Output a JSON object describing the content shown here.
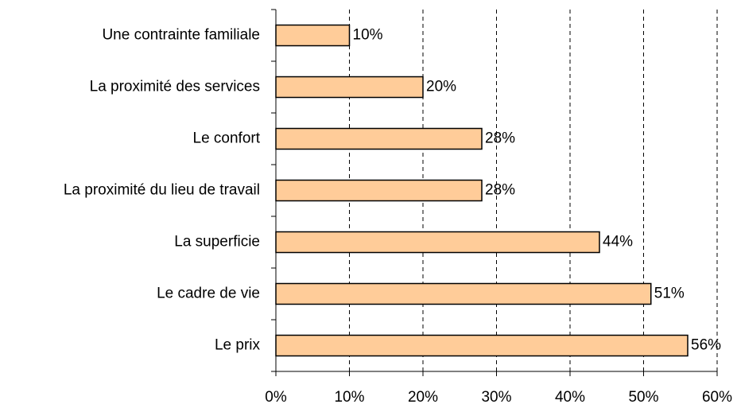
{
  "chart_data": {
    "type": "bar",
    "orientation": "horizontal",
    "categories": [
      "Une contrainte familiale",
      "La proximité des services",
      "Le confort",
      "La proximité du lieu de travail",
      "La superficie",
      "Le cadre de vie",
      "Le prix"
    ],
    "values": [
      10,
      20,
      28,
      28,
      44,
      51,
      56
    ],
    "value_labels": [
      "10%",
      "20%",
      "28%",
      "28%",
      "44%",
      "51%",
      "56%"
    ],
    "color": "#ffcc99",
    "xlim": [
      0,
      60
    ],
    "xticks": [
      {
        "value": 0,
        "label": "0%"
      },
      {
        "value": 10,
        "label": "10%"
      },
      {
        "value": 20,
        "label": "20%"
      },
      {
        "value": 30,
        "label": "30%"
      },
      {
        "value": 40,
        "label": "40%"
      },
      {
        "value": 50,
        "label": "50%"
      },
      {
        "value": 60,
        "label": "60%"
      }
    ],
    "grid": true
  }
}
